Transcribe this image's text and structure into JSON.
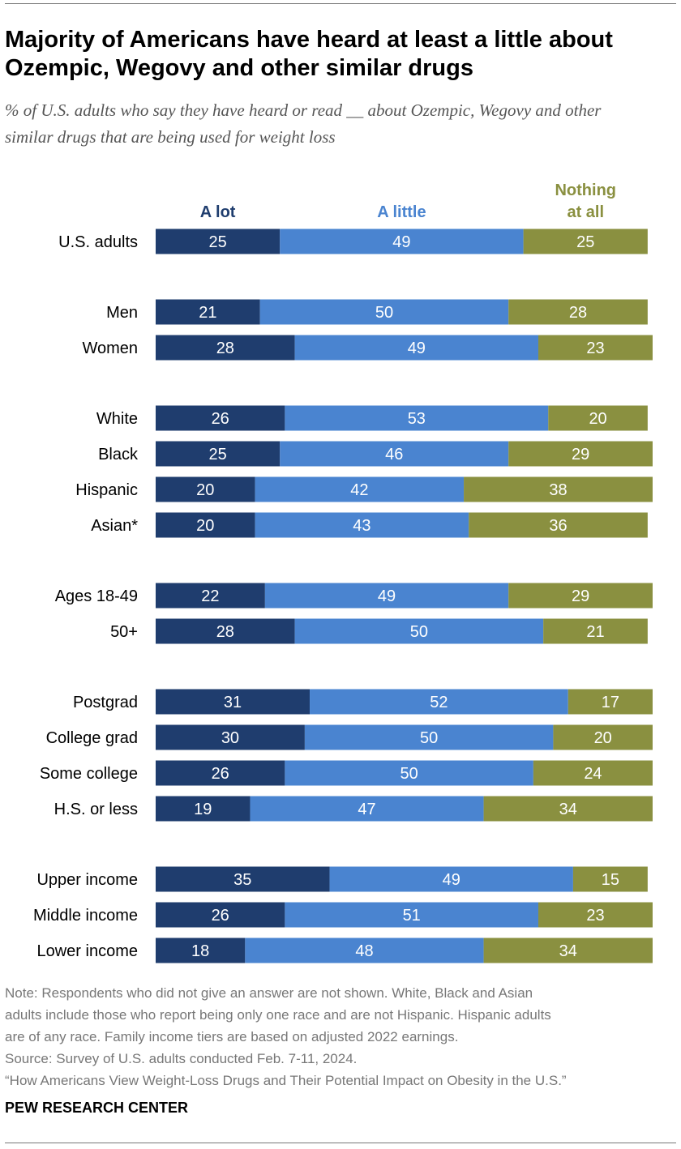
{
  "title": "Majority of Americans have heard at least a little about Ozempic, Wegovy and other similar drugs",
  "subtitle": "% of U.S. adults who say they have heard or read __ about Ozempic, Wegovy and other similar drugs that are being used for weight loss",
  "chart_data": {
    "type": "bar",
    "orientation": "horizontal-stacked",
    "series": [
      {
        "name": "A lot",
        "color": "#1f3d6e",
        "values": [
          25,
          21,
          28,
          26,
          25,
          20,
          20,
          22,
          28,
          31,
          30,
          26,
          19,
          35,
          26,
          18
        ]
      },
      {
        "name": "A little",
        "color": "#4a84d0",
        "values": [
          49,
          50,
          49,
          53,
          46,
          42,
          43,
          49,
          50,
          52,
          50,
          50,
          47,
          49,
          51,
          48
        ]
      },
      {
        "name": "Nothing at all",
        "color": "#8a9040",
        "values": [
          25,
          28,
          23,
          20,
          29,
          38,
          36,
          29,
          21,
          17,
          20,
          24,
          34,
          15,
          23,
          34
        ]
      }
    ],
    "categories": [
      "U.S. adults",
      "Men",
      "Women",
      "White",
      "Black",
      "Hispanic",
      "Asian*",
      "Ages 18-49",
      "50+",
      "Postgrad",
      "College grad",
      "Some college",
      "H.S. or less",
      "Upper income",
      "Middle income",
      "Lower income"
    ],
    "groups": [
      [
        0
      ],
      [
        1,
        2
      ],
      [
        3,
        4,
        5,
        6
      ],
      [
        7,
        8
      ],
      [
        9,
        10,
        11,
        12
      ],
      [
        13,
        14,
        15
      ]
    ],
    "xlim": [
      0,
      100
    ],
    "legend": "top, above columns",
    "grid": false
  },
  "notes": [
    "Note: Respondents who did not give an answer are not shown. White, Black and Asian",
    "adults include those who report being only one race and are not Hispanic. Hispanic adults",
    "are of any race. Family income tiers are based on adjusted 2022 earnings.",
    "Source: Survey of U.S. adults conducted Feb. 7-11, 2024.",
    "“How Americans View Weight-Loss Drugs and Their Potential Impact on Obesity in the U.S.”"
  ],
  "source_label": "PEW RESEARCH CENTER"
}
